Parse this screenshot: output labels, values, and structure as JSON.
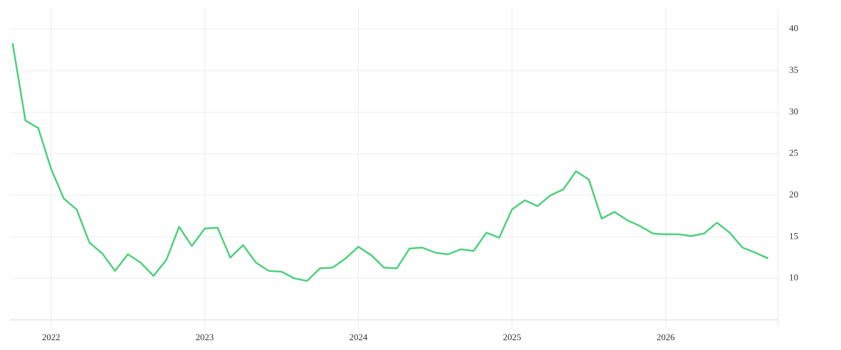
{
  "chart_data": {
    "type": "line",
    "x": [
      "2021-10",
      "2021-11",
      "2021-12",
      "2022-01",
      "2022-02",
      "2022-03",
      "2022-04",
      "2022-05",
      "2022-06",
      "2022-07",
      "2022-08",
      "2022-09",
      "2022-10",
      "2022-11",
      "2022-12",
      "2023-01",
      "2023-02",
      "2023-03",
      "2023-04",
      "2023-05",
      "2023-06",
      "2023-07",
      "2023-08",
      "2023-09",
      "2023-10",
      "2023-11",
      "2023-12",
      "2024-01",
      "2024-02",
      "2024-03",
      "2024-04",
      "2024-05",
      "2024-06",
      "2024-07",
      "2024-08",
      "2024-09",
      "2024-10",
      "2024-11",
      "2024-12",
      "2025-01",
      "2025-02",
      "2025-03",
      "2025-04",
      "2025-05",
      "2025-06",
      "2025-07",
      "2025-08",
      "2025-09",
      "2025-10",
      "2025-11",
      "2025-12",
      "2026-01",
      "2026-02",
      "2026-03",
      "2026-04",
      "2026-05",
      "2026-06",
      "2026-07",
      "2026-08",
      "2026-09"
    ],
    "series": [
      {
        "color": "#4cd07d",
        "values": [
          38.3,
          29.0,
          28.1,
          23.2,
          19.6,
          18.3,
          14.3,
          13.0,
          10.9,
          12.9,
          11.9,
          10.3,
          12.2,
          16.2,
          13.9,
          16.0,
          16.1,
          12.5,
          14.0,
          11.9,
          10.9,
          10.8,
          10.0,
          9.7,
          11.2,
          11.3,
          12.4,
          13.8,
          12.8,
          11.3,
          11.2,
          13.6,
          13.7,
          13.1,
          12.9,
          13.5,
          13.3,
          15.5,
          14.9,
          18.3,
          19.4,
          18.7,
          20.0,
          20.7,
          22.9,
          21.9,
          17.2,
          18.0,
          17.0,
          16.3,
          15.4,
          15.3,
          15.3,
          15.1,
          15.4,
          16.7,
          15.5,
          13.7,
          13.1,
          12.4
        ]
      }
    ],
    "xlim": [
      "2021-10",
      "2026-09"
    ],
    "xticks": [
      {
        "value": "2022-01",
        "label": "2022"
      },
      {
        "value": "2023-01",
        "label": "2023"
      },
      {
        "value": "2024-01",
        "label": "2024"
      },
      {
        "value": "2025-01",
        "label": "2025"
      },
      {
        "value": "2026-01",
        "label": "2026"
      }
    ],
    "ylim": [
      5,
      42.5
    ],
    "yticks": [
      10,
      15,
      20,
      25,
      30,
      35,
      40
    ],
    "grid": true
  }
}
